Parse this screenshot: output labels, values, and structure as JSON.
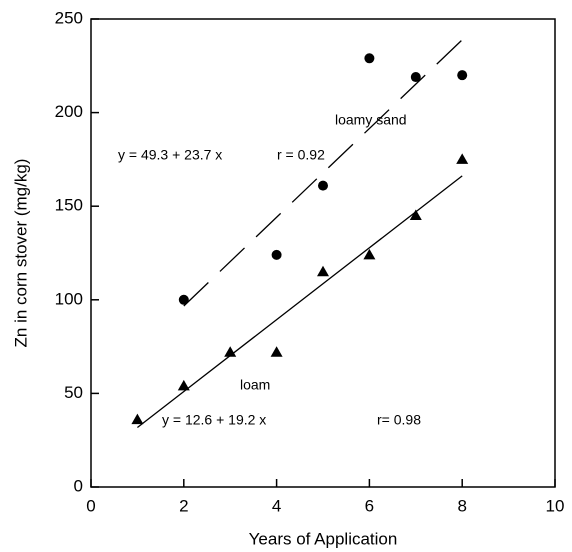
{
  "chart_data": {
    "type": "scatter",
    "x_label": "Years of Application",
    "y_label": "Zn in corn stover (mg/kg)",
    "xlim": [
      0,
      10
    ],
    "xticks": [
      0,
      2,
      4,
      6,
      8,
      10
    ],
    "ylim": [
      0,
      250
    ],
    "yticks": [
      0,
      50,
      100,
      150,
      200,
      250
    ],
    "series": [
      {
        "name": "loamy sand",
        "color": "#000000",
        "marker": "circle",
        "line_style": "dash",
        "x": [
          2,
          4,
          5,
          6,
          7,
          8
        ],
        "values": [
          100,
          124,
          161,
          229,
          219,
          220
        ],
        "fit": {
          "intercept": 49.3,
          "slope": 23.7
        }
      },
      {
        "name": "loam",
        "color": "#000000",
        "marker": "triangle",
        "line_style": "solid",
        "x": [
          1,
          2,
          3,
          4,
          5,
          6,
          7,
          8
        ],
        "values": [
          36,
          54,
          72,
          72,
          115,
          124,
          145,
          175
        ],
        "fit": {
          "intercept": 12.6,
          "slope": 19.2
        }
      }
    ],
    "annotations": [
      {
        "text": "y = 49.3 + 23.7 x"
      },
      {
        "text": "r = 0.92"
      },
      {
        "text": "y = 12.6 + 19.2 x"
      },
      {
        "text": "r= 0.98"
      }
    ]
  }
}
